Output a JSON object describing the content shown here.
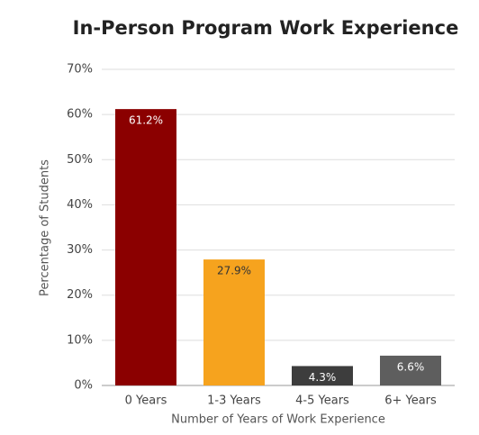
{
  "chart_data": {
    "type": "bar",
    "title": "In-Person Program Work Experience",
    "x_label": "Number of Years of Work Experience",
    "y_label": "Percentage of Students",
    "categories": [
      "0 Years",
      "1-3 Years",
      "4-5 Years",
      "6+ Years"
    ],
    "values": [
      61.2,
      27.9,
      4.3,
      6.6
    ],
    "value_labels": [
      "61.2%",
      "27.9%",
      "4.3%",
      "6.6%"
    ],
    "colors": [
      "#8b0000",
      "#f6a31e",
      "#3d3d3d",
      "#5e5e5e"
    ],
    "ylim": [
      0,
      70
    ],
    "yticks": [
      {
        "value": 0,
        "label": "0%"
      },
      {
        "value": 10,
        "label": "10%"
      },
      {
        "value": 20,
        "label": "20%"
      },
      {
        "value": 30,
        "label": "30%"
      },
      {
        "value": 40,
        "label": "40%"
      },
      {
        "value": 50,
        "label": "50%"
      },
      {
        "value": 60,
        "label": "60%"
      },
      {
        "value": 70,
        "label": "70%"
      }
    ],
    "grid": true
  }
}
